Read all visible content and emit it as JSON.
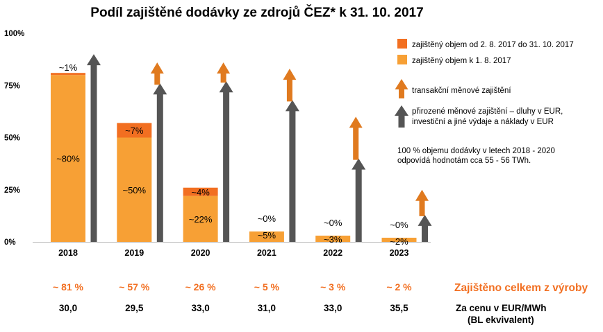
{
  "colors": {
    "light_orange": "#F7A035",
    "dark_orange": "#F26F21",
    "arrow_orange": "#E07A1F",
    "arrow_gray": "#555555",
    "total_orange": "#F26F21",
    "axis": "#BFBFBF"
  },
  "icons": {
    "orange_arrow": "up-arrow-orange-icon",
    "gray_arrow": "up-arrow-gray-icon"
  },
  "chart_data": {
    "type": "bar",
    "stacked": true,
    "title": "Podíl zajištěné dodávky ze zdrojů ČEZ* k 31. 10. 2017",
    "categories": [
      "2018",
      "2019",
      "2020",
      "2021",
      "2022",
      "2023"
    ],
    "ylim": [
      0,
      100
    ],
    "yticks": [
      0,
      25,
      50,
      75,
      100
    ],
    "ytick_labels": [
      "0%",
      "25%",
      "50%",
      "75%",
      "100%"
    ],
    "grid": false,
    "legend_position": "top-right",
    "series": [
      {
        "name": "zajištěný objem k 1. 8. 2017",
        "values": [
          80,
          50,
          22,
          5,
          3,
          2
        ],
        "labels": [
          "~80%",
          "~50%",
          "~22%",
          "~5%",
          "~3%",
          "~2%"
        ]
      },
      {
        "name": "zajištěný objem od 2. 8. 2017 do 31. 10. 2017",
        "values": [
          1,
          7,
          4,
          0,
          0,
          0
        ],
        "labels": [
          "~1%",
          "~7%",
          "~4%",
          "~0%",
          "~0%",
          "~0%"
        ]
      }
    ],
    "arrow_series": [
      {
        "name": "transakční měnové zajištění",
        "values": [
          0,
          86,
          86,
          83,
          60,
          25
        ]
      },
      {
        "name": "přirozené měnové zajištění – dluhy v EUR, investiční a jiné výdaje a náklady v EUR",
        "values": [
          90,
          76,
          77,
          68,
          40,
          13
        ]
      }
    ],
    "note": "100 % objemu dodávky v letech 2018 - 2020 odpovídá hodnotám cca 55 - 56 TWh.",
    "totals": {
      "title": "Zajištěno celkem z výroby",
      "values": [
        "~ 81 %",
        "~ 57 %",
        "~ 26 %",
        "~ 5 %",
        "~ 3 %",
        "~ 2 %"
      ]
    },
    "prices": {
      "title_line1": "Za cenu v EUR/MWh",
      "title_line2": "(BL ekvivalent)",
      "values": [
        "30,0",
        "29,5",
        "33,0",
        "31,0",
        "33,0",
        "35,5"
      ]
    }
  }
}
